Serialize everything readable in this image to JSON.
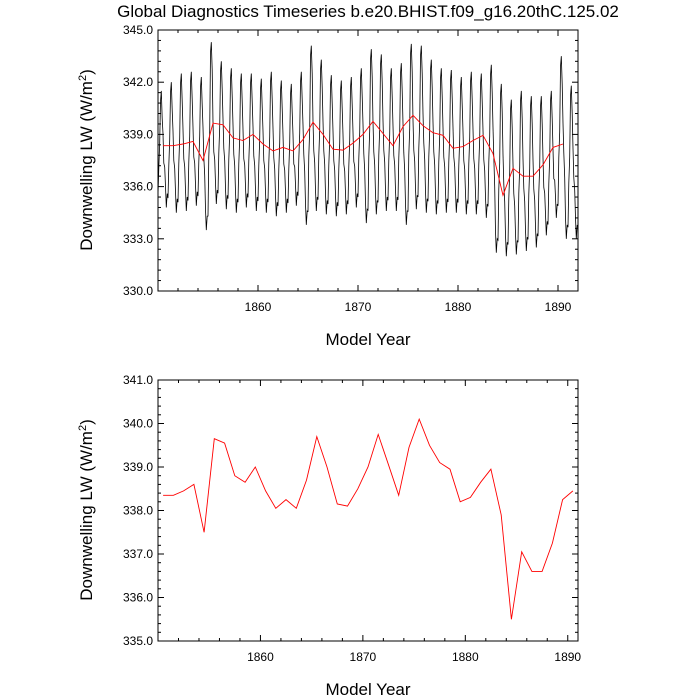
{
  "figure_title": "Global Diagnostics Timeseries b.e20.BHIST.f09_g16.20thC.125.02",
  "colors": {
    "monthly": "#000000",
    "annual": "#ff0000"
  },
  "chart_data": [
    {
      "type": "line",
      "title": "Global Diagnostics Timeseries b.e20.BHIST.f09_g16.20thC.125.02",
      "xlabel": "Model Year",
      "ylabel_main": "Downwelling LW (W/m",
      "ylabel_sup": "2",
      "ylabel_close": ")",
      "xlim": [
        1850,
        1892
      ],
      "ylim": [
        330,
        345
      ],
      "xticks": [
        1860,
        1870,
        1880,
        1890
      ],
      "xtick_labels": [
        "1860",
        "1870",
        "1880",
        "1890"
      ],
      "yticks": [
        330,
        333,
        336,
        339,
        342,
        345
      ],
      "ytick_labels": [
        "330.0",
        "333.0",
        "336.0",
        "339.0",
        "342.0",
        "345.0"
      ],
      "series": [
        {
          "name": "monthly",
          "years": [
            1850,
            1851,
            1852,
            1853,
            1854,
            1855,
            1856,
            1857,
            1858,
            1859,
            1860,
            1861,
            1862,
            1863,
            1864,
            1865,
            1866,
            1867,
            1868,
            1869,
            1870,
            1871,
            1872,
            1873,
            1874,
            1875,
            1876,
            1877,
            1878,
            1879,
            1880,
            1881,
            1882,
            1883,
            1884,
            1885,
            1886,
            1887,
            1888,
            1889,
            1890,
            1891
          ],
          "peaks": [
            341.5,
            342.0,
            342.5,
            342.6,
            342.3,
            344.3,
            343.2,
            342.8,
            342.5,
            342.5,
            342.2,
            342.6,
            342.1,
            341.9,
            342.6,
            344.1,
            343.3,
            342.4,
            342.1,
            342.3,
            342.8,
            343.9,
            343.6,
            342.8,
            343.1,
            344.2,
            344.1,
            343.3,
            342.8,
            342.7,
            342.3,
            342.6,
            342.5,
            343.0,
            341.9,
            341.0,
            341.5,
            341.2,
            341.2,
            341.5,
            343.5,
            341.8
          ],
          "troughs": [
            335.0,
            334.8,
            334.5,
            334.6,
            334.9,
            333.5,
            335.0,
            334.7,
            334.5,
            334.8,
            334.6,
            334.5,
            334.3,
            334.5,
            334.9,
            333.8,
            334.6,
            334.4,
            334.3,
            334.4,
            334.8,
            333.9,
            334.4,
            334.6,
            334.6,
            333.8,
            334.7,
            334.5,
            334.4,
            334.5,
            334.5,
            334.4,
            334.4,
            334.2,
            332.2,
            332.0,
            332.1,
            332.3,
            332.5,
            333.2,
            334.2,
            333.0
          ]
        },
        {
          "name": "annual",
          "x": [
            1850.5,
            1851.5,
            1852.5,
            1853.5,
            1854.5,
            1855.5,
            1856.5,
            1857.5,
            1858.5,
            1859.5,
            1860.5,
            1861.5,
            1862.5,
            1863.5,
            1864.5,
            1865.5,
            1866.5,
            1867.5,
            1868.5,
            1869.5,
            1870.5,
            1871.5,
            1872.5,
            1873.5,
            1874.5,
            1875.5,
            1876.5,
            1877.5,
            1878.5,
            1879.5,
            1880.5,
            1881.5,
            1882.5,
            1883.5,
            1884.5,
            1885.5,
            1886.5,
            1887.5,
            1888.5,
            1889.5,
            1890.5
          ],
          "values": [
            338.35,
            338.35,
            338.45,
            338.6,
            337.5,
            339.65,
            339.55,
            338.8,
            338.65,
            339.0,
            338.45,
            338.05,
            338.25,
            338.05,
            338.7,
            339.7,
            339.0,
            338.15,
            338.1,
            338.5,
            339.0,
            339.75,
            339.05,
            338.35,
            339.45,
            340.1,
            339.5,
            339.1,
            338.95,
            338.2,
            338.3,
            338.65,
            338.95,
            337.9,
            335.5,
            337.05,
            336.6,
            336.6,
            337.25,
            338.25,
            338.45
          ]
        }
      ]
    },
    {
      "type": "line",
      "title": "",
      "xlabel": "Model Year",
      "ylabel_main": "Downwelling LW (W/m",
      "ylabel_sup": "2",
      "ylabel_close": ")",
      "xlim": [
        1850,
        1891
      ],
      "ylim": [
        335,
        341
      ],
      "xticks": [
        1860,
        1870,
        1880,
        1890
      ],
      "xtick_labels": [
        "1860",
        "1870",
        "1880",
        "1890"
      ],
      "yticks": [
        335,
        336,
        337,
        338,
        339,
        340,
        341
      ],
      "ytick_labels": [
        "335.0",
        "336.0",
        "337.0",
        "338.0",
        "339.0",
        "340.0",
        "341.0"
      ],
      "series": [
        {
          "name": "annual",
          "x": [
            1850.5,
            1851.5,
            1852.5,
            1853.5,
            1854.5,
            1855.5,
            1856.5,
            1857.5,
            1858.5,
            1859.5,
            1860.5,
            1861.5,
            1862.5,
            1863.5,
            1864.5,
            1865.5,
            1866.5,
            1867.5,
            1868.5,
            1869.5,
            1870.5,
            1871.5,
            1872.5,
            1873.5,
            1874.5,
            1875.5,
            1876.5,
            1877.5,
            1878.5,
            1879.5,
            1880.5,
            1881.5,
            1882.5,
            1883.5,
            1884.5,
            1885.5,
            1886.5,
            1887.5,
            1888.5,
            1889.5,
            1890.5
          ],
          "values": [
            338.35,
            338.35,
            338.45,
            338.6,
            337.5,
            339.65,
            339.55,
            338.8,
            338.65,
            339.0,
            338.45,
            338.05,
            338.25,
            338.05,
            338.7,
            339.7,
            339.0,
            338.15,
            338.1,
            338.5,
            339.0,
            339.75,
            339.05,
            338.35,
            339.45,
            340.1,
            339.5,
            339.1,
            338.95,
            338.2,
            338.3,
            338.65,
            338.95,
            337.9,
            335.5,
            337.05,
            336.6,
            336.6,
            337.25,
            338.25,
            338.45
          ]
        }
      ]
    }
  ]
}
